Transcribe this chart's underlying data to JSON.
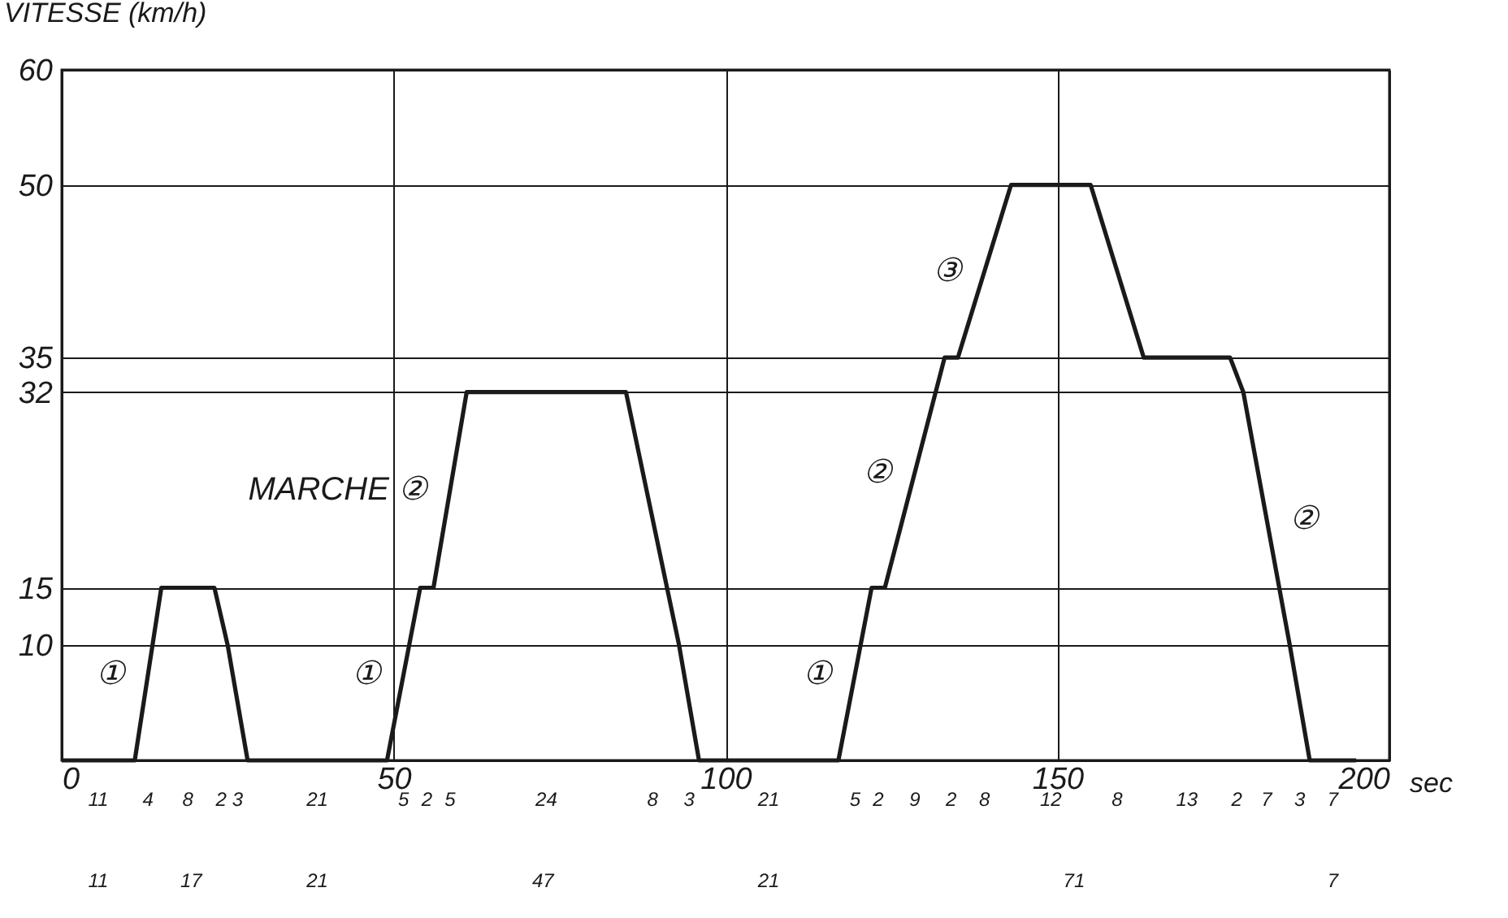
{
  "chart_data": {
    "type": "line",
    "ylabel": "VITESSE (km/h)",
    "xlabel": "sec",
    "x": [
      0,
      11,
      15,
      23,
      25,
      28,
      49,
      54,
      56,
      61,
      85,
      93,
      96,
      117,
      122,
      124,
      133,
      135,
      143,
      155,
      163,
      176,
      178,
      185,
      188,
      195
    ],
    "series": [
      {
        "color": "#1a1a1a",
        "values": [
          0,
          0,
          15,
          15,
          10,
          0,
          0,
          15,
          15,
          32,
          32,
          10,
          0,
          0,
          15,
          15,
          35,
          35,
          50,
          50,
          35,
          35,
          32,
          10,
          0,
          0
        ]
      }
    ],
    "xlim": [
      0,
      200
    ],
    "xticks": [
      0,
      50,
      100,
      150,
      200
    ],
    "ylim": [
      0,
      60
    ],
    "yticks": [
      {
        "value": 0,
        "label": null
      },
      10,
      15,
      32,
      35,
      50,
      60
    ],
    "grid": true,
    "marker": "none",
    "line_style": "solid",
    "annotations": [
      {
        "text": "①",
        "x": 13,
        "y": 7.5
      },
      {
        "text": "①",
        "x": 51.5,
        "y": 7.5
      },
      {
        "text": "MARCHE ②",
        "x": 58.5,
        "y": 23.5
      },
      {
        "text": "①",
        "x": 119.5,
        "y": 7.5
      },
      {
        "text": "②",
        "x": 128.5,
        "y": 25
      },
      {
        "text": "③",
        "x": 139,
        "y": 42.5
      },
      {
        "text": "②",
        "x": 181.5,
        "y": 21
      },
      "11",
      "4",
      "8",
      "2",
      "3",
      "21",
      "5",
      "2",
      "5",
      "24",
      "8",
      "3",
      "21",
      "5",
      "2",
      "9",
      "2",
      "8",
      "12",
      "8",
      "13",
      "2",
      "7",
      "3",
      "7",
      "11",
      "17",
      "21",
      "47",
      "21",
      "71",
      "7"
    ]
  }
}
